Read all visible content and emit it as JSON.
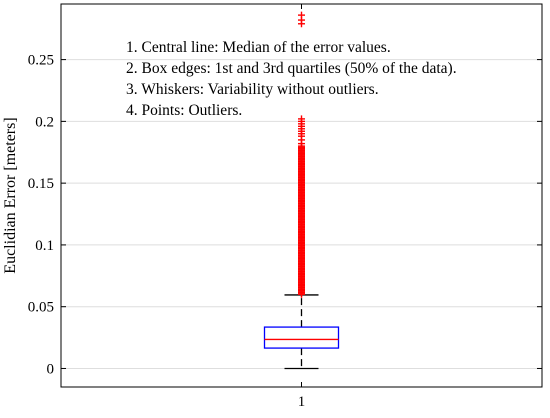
{
  "chart_data": {
    "type": "boxplot",
    "xlabel": "",
    "ylabel": "Euclidian Error [meters]",
    "ylim": [
      -0.015,
      0.295
    ],
    "yticks": [
      0,
      0.05,
      0.1,
      0.15,
      0.2,
      0.25
    ],
    "ytick_labels": [
      "0",
      "0.05",
      "0.1",
      "0.15",
      "0.2",
      "0.25"
    ],
    "categories": [
      "1"
    ],
    "grid": "horizontal",
    "legend_position": "top-center",
    "annotations": [
      "1. Central line: Median of the error values.",
      "2. Box edges: 1st and 3rd quartiles (50% of the data).",
      "3. Whiskers: Variability without outliers.",
      "4. Points: Outliers."
    ],
    "boxes": [
      {
        "category": "1",
        "whisker_low": 0.0,
        "q1": 0.0165,
        "median": 0.0235,
        "q3": 0.0335,
        "whisker_high": 0.0595,
        "outliers_dense_from": 0.06,
        "outliers_dense_to": 0.18,
        "outliers_sparse": [
          0.182,
          0.185,
          0.188,
          0.19,
          0.192,
          0.194,
          0.196,
          0.198,
          0.2,
          0.202,
          0.279,
          0.282,
          0.286
        ]
      }
    ],
    "colors": {
      "box": "#0000ff",
      "median": "#ff0000",
      "whisker": "#000000",
      "outlier": "#ff0000",
      "grid": "#dedede",
      "axes": "#000000"
    }
  }
}
